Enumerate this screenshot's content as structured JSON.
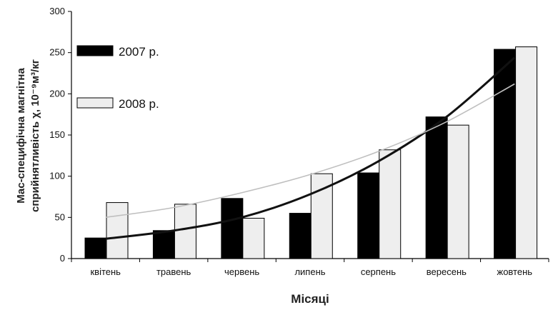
{
  "chart_data": {
    "type": "bar",
    "title": "",
    "xlabel": "Місяці",
    "ylabel_line1": "Мас-специфічна магнітна",
    "ylabel_line2": "сприйнятливість χ, 10⁻⁹м³/кг",
    "ylim": [
      0,
      300
    ],
    "yticks": [
      0,
      50,
      100,
      150,
      200,
      250,
      300
    ],
    "categories": [
      "квітень",
      "травень",
      "червень",
      "липень",
      "серпень",
      "вересень",
      "жовтень"
    ],
    "series": [
      {
        "name": "2007 р.",
        "color": "#000000",
        "values": [
          25,
          34,
          73,
          55,
          104,
          172,
          254
        ]
      },
      {
        "name": "2008 р.",
        "color": "#eeeeee",
        "values": [
          68,
          66,
          49,
          103,
          132,
          162,
          257
        ]
      }
    ],
    "trendlines": [
      {
        "series": "2007 р.",
        "type": "exponential",
        "color": "#111111",
        "values": [
          24,
          34,
          50,
          78,
          118,
          172,
          244
        ]
      },
      {
        "series": "2008 р.",
        "type": "exponential",
        "color": "#bfbfbf",
        "values": [
          50,
          62,
          80,
          102,
          130,
          166,
          212
        ]
      }
    ],
    "legend": "top-left",
    "grid": false
  }
}
